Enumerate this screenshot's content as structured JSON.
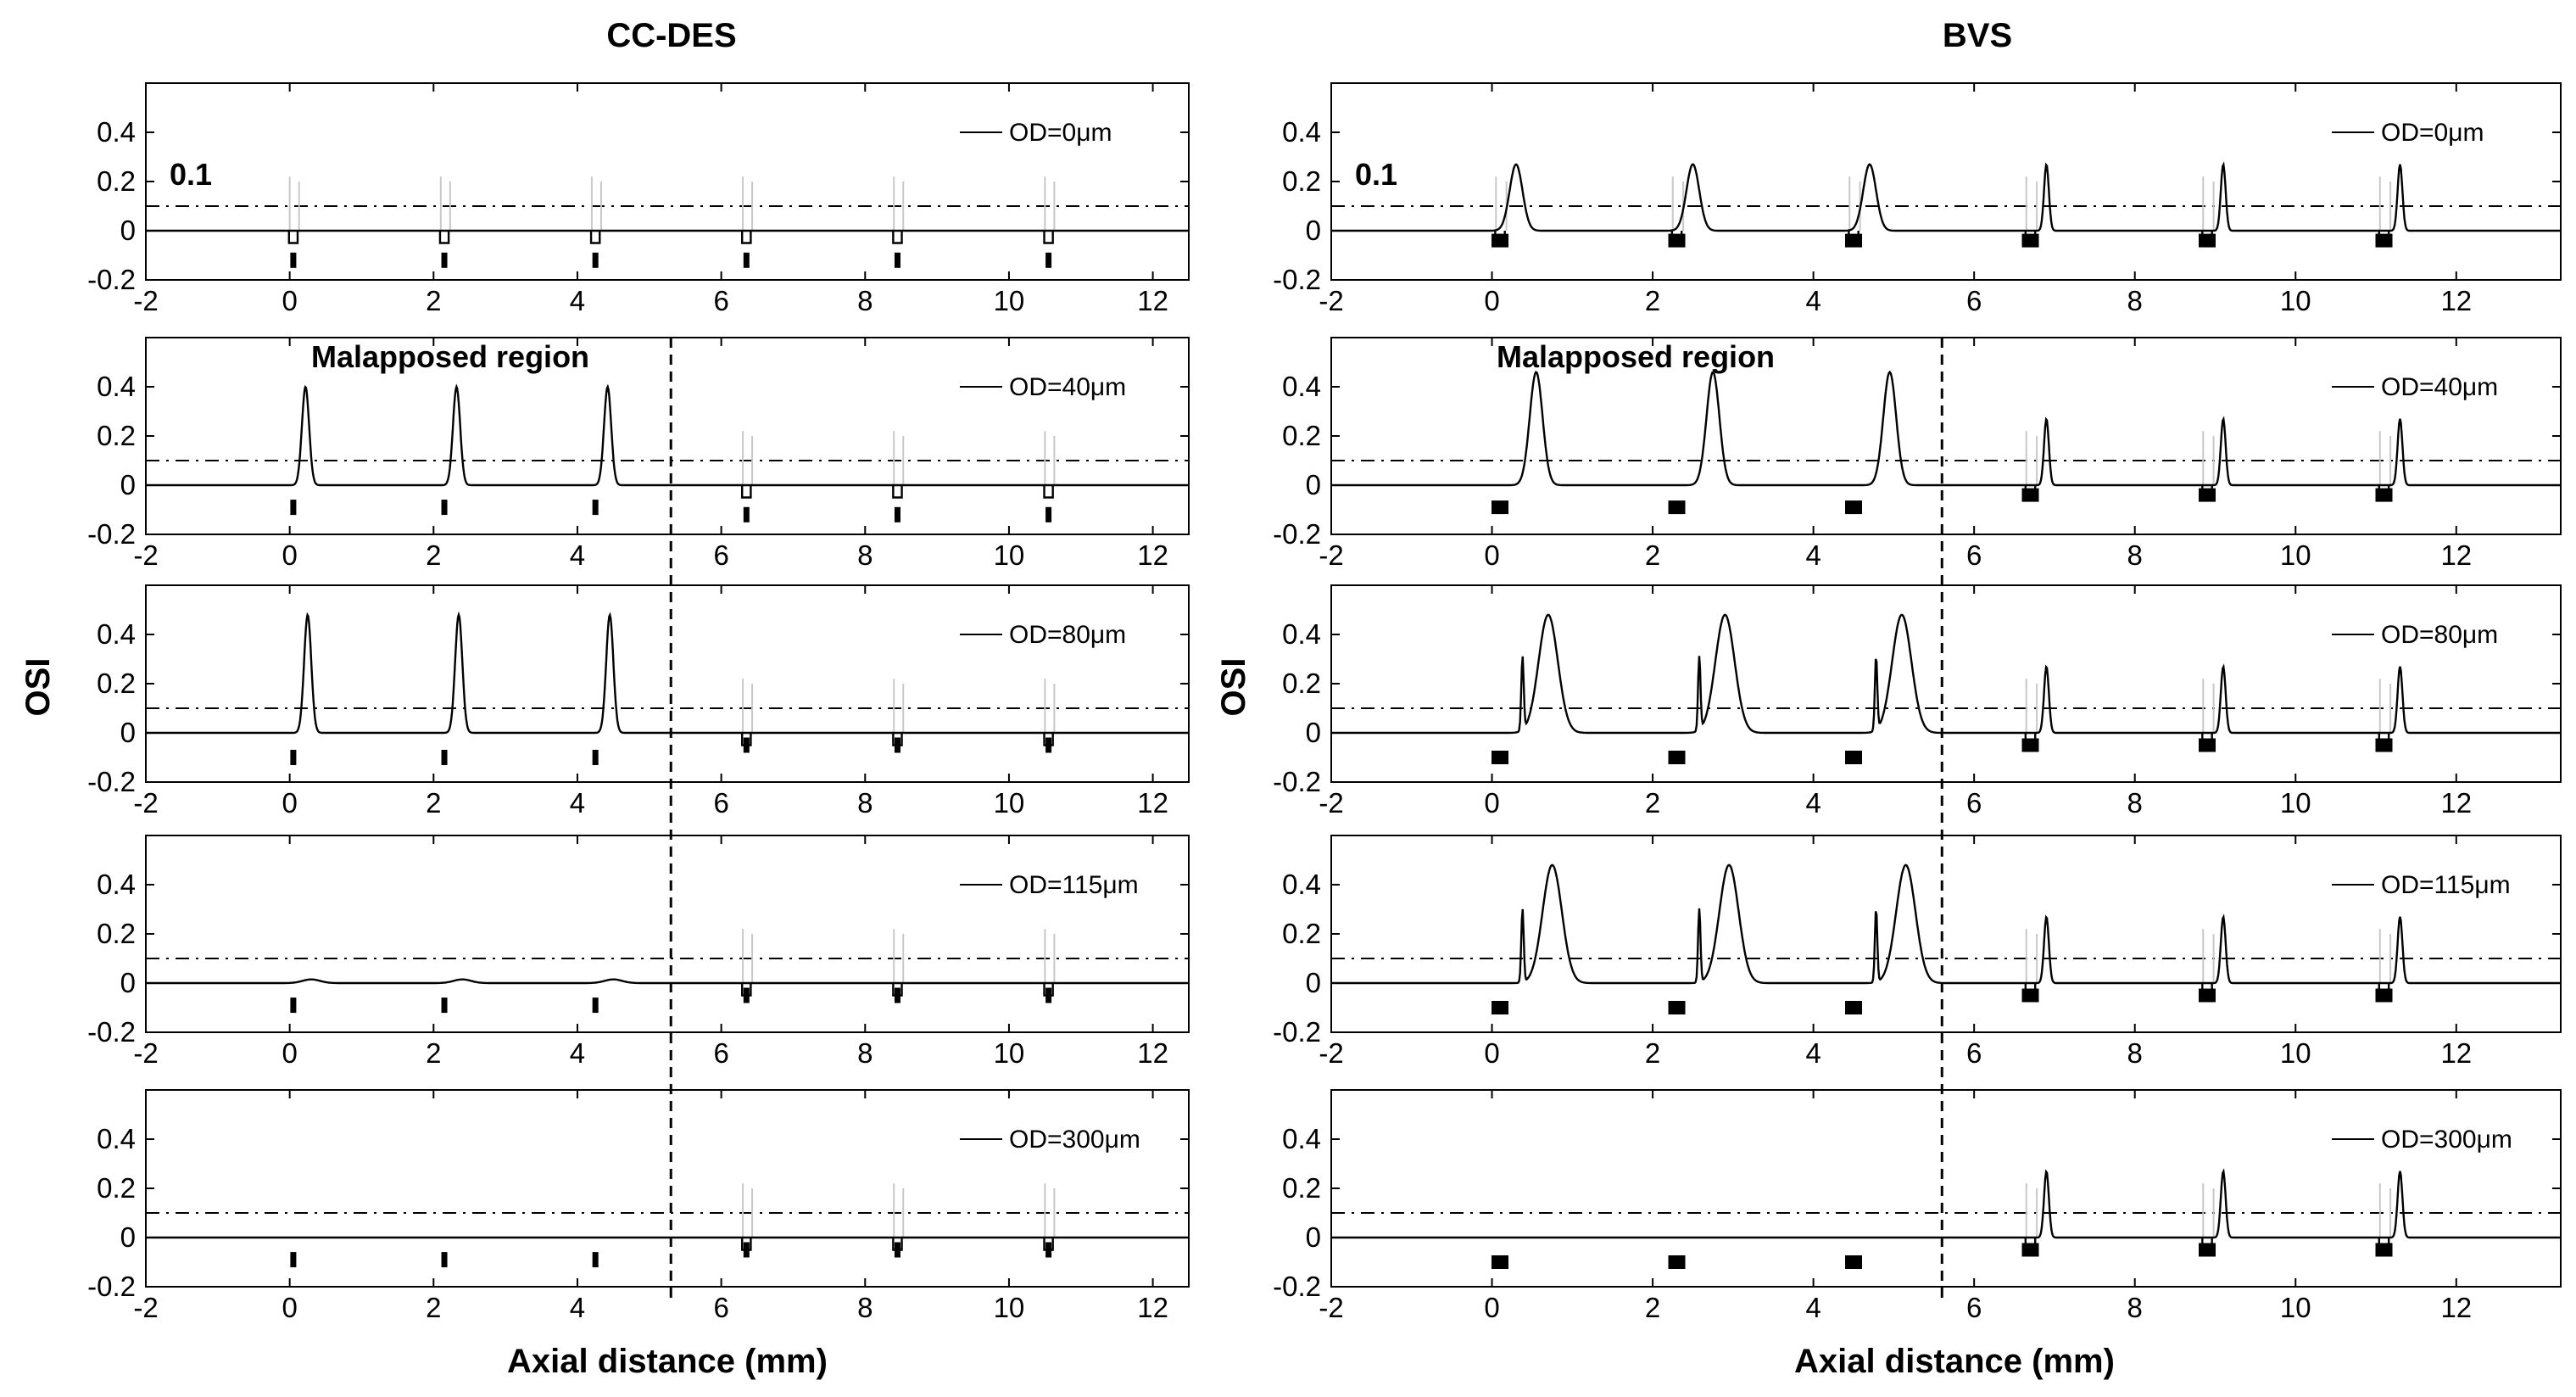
{
  "colors": {
    "curve": "#000000",
    "ghost": "#c8c8c8",
    "frame": "#000000",
    "threshold": "#000000",
    "background": "#ffffff"
  },
  "chart_data": [
    {
      "type": "line",
      "group": "CC-DES",
      "column_title": "CC-DES",
      "ylabel": "OSI",
      "xlabel": "Axial distance (mm)",
      "xlim": [
        -2,
        12.5
      ],
      "ylim": [
        -0.2,
        0.6
      ],
      "xticks": [
        "-2",
        "0",
        "2",
        "4",
        "6",
        "8",
        "10",
        "12"
      ],
      "yticks": [
        "0.4",
        "0.2",
        "0",
        "-0.2"
      ],
      "threshold": 0.1,
      "threshold_label": "0.1",
      "region_label": "Malapposed region",
      "boundary_x": 5.3,
      "strut_positions": [
        0.05,
        2.15,
        4.25,
        6.35,
        8.45,
        10.55
      ],
      "strut_marker": "thin-rect",
      "panels": [
        {
          "legend": "OD=0μm",
          "od_um": 0,
          "strut_offsets": [
            -0.12,
            -0.12,
            -0.12,
            -0.12,
            -0.12,
            -0.12
          ],
          "peaks": []
        },
        {
          "legend": "OD=40μm",
          "od_um": 40,
          "strut_offsets": [
            -0.09,
            -0.09,
            -0.09,
            -0.12,
            -0.12,
            -0.12
          ],
          "peaks": [
            {
              "x": 0.22,
              "h": 0.4
            },
            {
              "x": 2.32,
              "h": 0.4
            },
            {
              "x": 4.42,
              "h": 0.4
            }
          ]
        },
        {
          "legend": "OD=80μm",
          "od_um": 80,
          "strut_offsets": [
            -0.1,
            -0.1,
            -0.1,
            -0.05,
            -0.05,
            -0.05
          ],
          "peaks": [
            {
              "x": 0.25,
              "h": 0.48
            },
            {
              "x": 2.35,
              "h": 0.48
            },
            {
              "x": 4.45,
              "h": 0.48
            }
          ]
        },
        {
          "legend": "OD=115μm",
          "od_um": 115,
          "strut_offsets": [
            -0.09,
            -0.09,
            -0.09,
            -0.05,
            -0.05,
            -0.05
          ],
          "peaks": [
            {
              "x": 0.3,
              "h": 0.015
            },
            {
              "x": 2.4,
              "h": 0.015
            },
            {
              "x": 4.5,
              "h": 0.015
            }
          ]
        },
        {
          "legend": "OD=300μm",
          "od_um": 300,
          "strut_offsets": [
            -0.09,
            -0.09,
            -0.09,
            -0.05,
            -0.05,
            -0.05
          ],
          "peaks": []
        }
      ]
    },
    {
      "type": "line",
      "group": "BVS",
      "column_title": "BVS",
      "ylabel": "OSI",
      "xlabel": "Axial distance (mm)",
      "xlim": [
        -2,
        13.3
      ],
      "ylim": [
        -0.2,
        0.6
      ],
      "xticks": [
        "-2",
        "0",
        "2",
        "4",
        "6",
        "8",
        "10",
        "12"
      ],
      "yticks": [
        "0.4",
        "0.2",
        "0",
        "-0.2"
      ],
      "threshold": 0.1,
      "threshold_label": "0.1",
      "region_label": "Malapposed region",
      "boundary_x": 5.6,
      "strut_positions": [
        0.1,
        2.3,
        4.5,
        6.7,
        8.9,
        11.1
      ],
      "strut_marker": "square",
      "panels": [
        {
          "legend": "OD=0μm",
          "od_um": 0,
          "strut_offsets": [
            -0.04,
            -0.04,
            -0.04,
            -0.04,
            -0.04,
            -0.04
          ],
          "peaks": [
            {
              "x": 0.3,
              "h": 0.27
            },
            {
              "x": 2.5,
              "h": 0.27
            },
            {
              "x": 4.7,
              "h": 0.27
            },
            {
              "x": 6.9,
              "h": 0.27
            },
            {
              "x": 9.1,
              "h": 0.27
            },
            {
              "x": 11.3,
              "h": 0.27
            }
          ]
        },
        {
          "legend": "OD=40μm",
          "od_um": 40,
          "strut_offsets": [
            -0.09,
            -0.09,
            -0.09,
            -0.04,
            -0.04,
            -0.04
          ],
          "peaks": [
            {
              "x": 0.55,
              "h": 0.46
            },
            {
              "x": 2.75,
              "h": 0.46
            },
            {
              "x": 4.95,
              "h": 0.46
            },
            {
              "x": 6.9,
              "h": 0.27
            },
            {
              "x": 9.1,
              "h": 0.27
            },
            {
              "x": 11.3,
              "h": 0.27
            }
          ]
        },
        {
          "legend": "OD=80μm",
          "od_um": 80,
          "strut_offsets": [
            -0.1,
            -0.1,
            -0.1,
            -0.05,
            -0.05,
            -0.05
          ],
          "peaks": [
            {
              "x": 0.7,
              "h": 0.48
            },
            {
              "x": 2.9,
              "h": 0.48
            },
            {
              "x": 5.1,
              "h": 0.48
            },
            {
              "x": 6.9,
              "h": 0.27
            },
            {
              "x": 9.1,
              "h": 0.27
            },
            {
              "x": 11.3,
              "h": 0.27
            }
          ]
        },
        {
          "legend": "OD=115μm",
          "od_um": 115,
          "strut_offsets": [
            -0.1,
            -0.1,
            -0.1,
            -0.05,
            -0.05,
            -0.05
          ],
          "peaks": [
            {
              "x": 0.75,
              "h": 0.48
            },
            {
              "x": 2.95,
              "h": 0.48
            },
            {
              "x": 5.15,
              "h": 0.48
            },
            {
              "x": 6.9,
              "h": 0.27
            },
            {
              "x": 9.1,
              "h": 0.27
            },
            {
              "x": 11.3,
              "h": 0.27
            }
          ]
        },
        {
          "legend": "OD=300μm",
          "od_um": 300,
          "strut_offsets": [
            -0.1,
            -0.1,
            -0.1,
            -0.05,
            -0.05,
            -0.05
          ],
          "peaks": [
            {
              "x": 6.9,
              "h": 0.27
            },
            {
              "x": 9.1,
              "h": 0.27
            },
            {
              "x": 11.3,
              "h": 0.27
            }
          ]
        }
      ]
    }
  ]
}
